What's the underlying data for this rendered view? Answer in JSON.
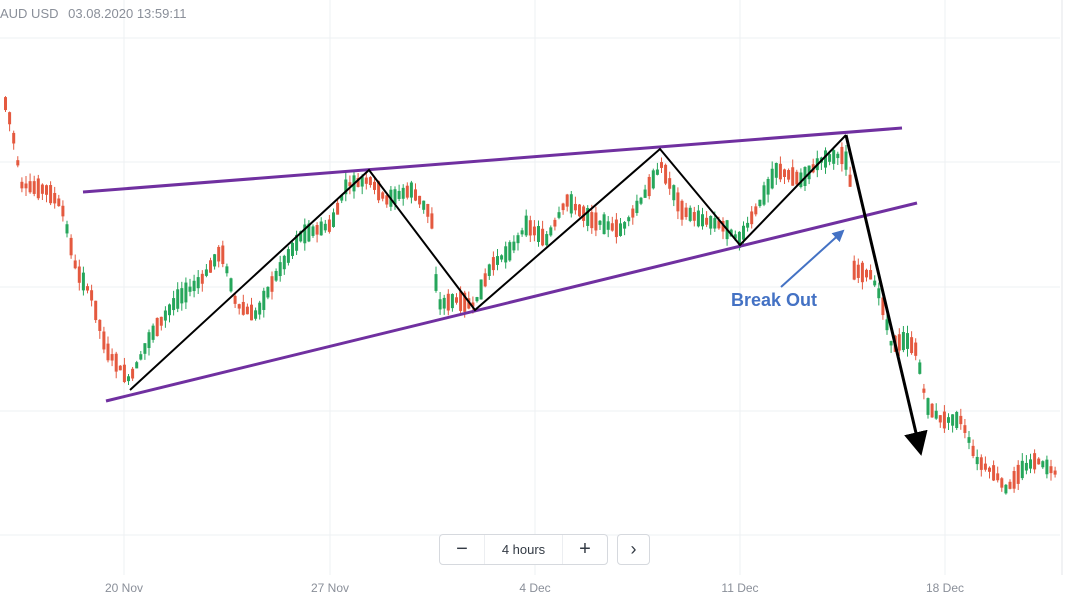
{
  "header": {
    "symbol": "AUD USD",
    "datetime": "03.08.2020 13:59:11"
  },
  "timeframe": {
    "minus_icon": "minus-icon",
    "plus_icon": "plus-icon",
    "label": "4 hours",
    "next_icon": "chevron-right-icon"
  },
  "colors": {
    "bull": "#26a65b",
    "bear": "#e4593f",
    "channel": "#7030a0",
    "zigzag": "#000000",
    "annotation": "#4472c4",
    "grid": "#eef0f3"
  },
  "chart_data": {
    "type": "candlestick",
    "title": "",
    "x_ticks": [
      "20 Nov",
      "27 Nov",
      "4 Dec",
      "11 Dec",
      "18 Dec"
    ],
    "annotation": "Break Out",
    "grid": true,
    "drawn_lines": [
      {
        "name": "upper channel",
        "role": "channel"
      },
      {
        "name": "lower channel",
        "role": "channel"
      },
      {
        "name": "swing zigzag",
        "role": "zigzag"
      },
      {
        "name": "breakout arrow",
        "role": "arrow"
      }
    ]
  }
}
